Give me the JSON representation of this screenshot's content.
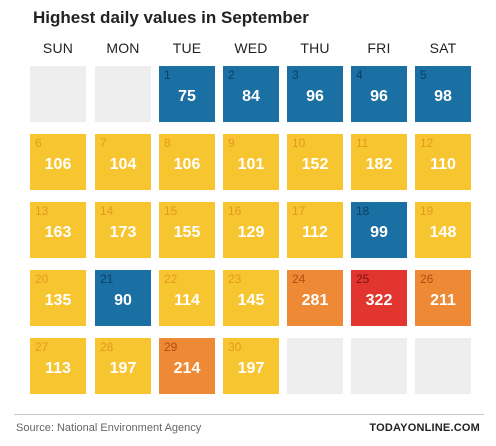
{
  "chart_data": {
    "type": "heatmap",
    "title": "Highest daily values in September",
    "weekdays": [
      "SUN",
      "MON",
      "TUE",
      "WED",
      "THU",
      "FRI",
      "SAT"
    ],
    "first_weekday_index": 2,
    "days": [
      1,
      2,
      3,
      4,
      5,
      6,
      7,
      8,
      9,
      10,
      11,
      12,
      13,
      14,
      15,
      16,
      17,
      18,
      19,
      20,
      21,
      22,
      23,
      24,
      25,
      26,
      27,
      28,
      29,
      30
    ],
    "values": [
      75,
      84,
      96,
      96,
      98,
      106,
      104,
      106,
      101,
      152,
      182,
      110,
      163,
      173,
      155,
      129,
      112,
      99,
      148,
      135,
      90,
      114,
      145,
      281,
      322,
      211,
      113,
      197,
      214,
      197
    ],
    "color_bands": [
      {
        "max": 100,
        "color": "#1a6fa3",
        "label_color": "#0d3f63"
      },
      {
        "max": 200,
        "color": "#f7c530",
        "label_color": "#e59a1f"
      },
      {
        "max": 300,
        "color": "#ee8a35",
        "label_color": "#b84a10"
      },
      {
        "max": 9999,
        "color": "#e33530",
        "label_color": "#7a1010"
      }
    ],
    "empty_color": "#eeeeee"
  },
  "footer": {
    "source": "Source: National Environment Agency",
    "brand": "TODAYONLINE.COM"
  }
}
